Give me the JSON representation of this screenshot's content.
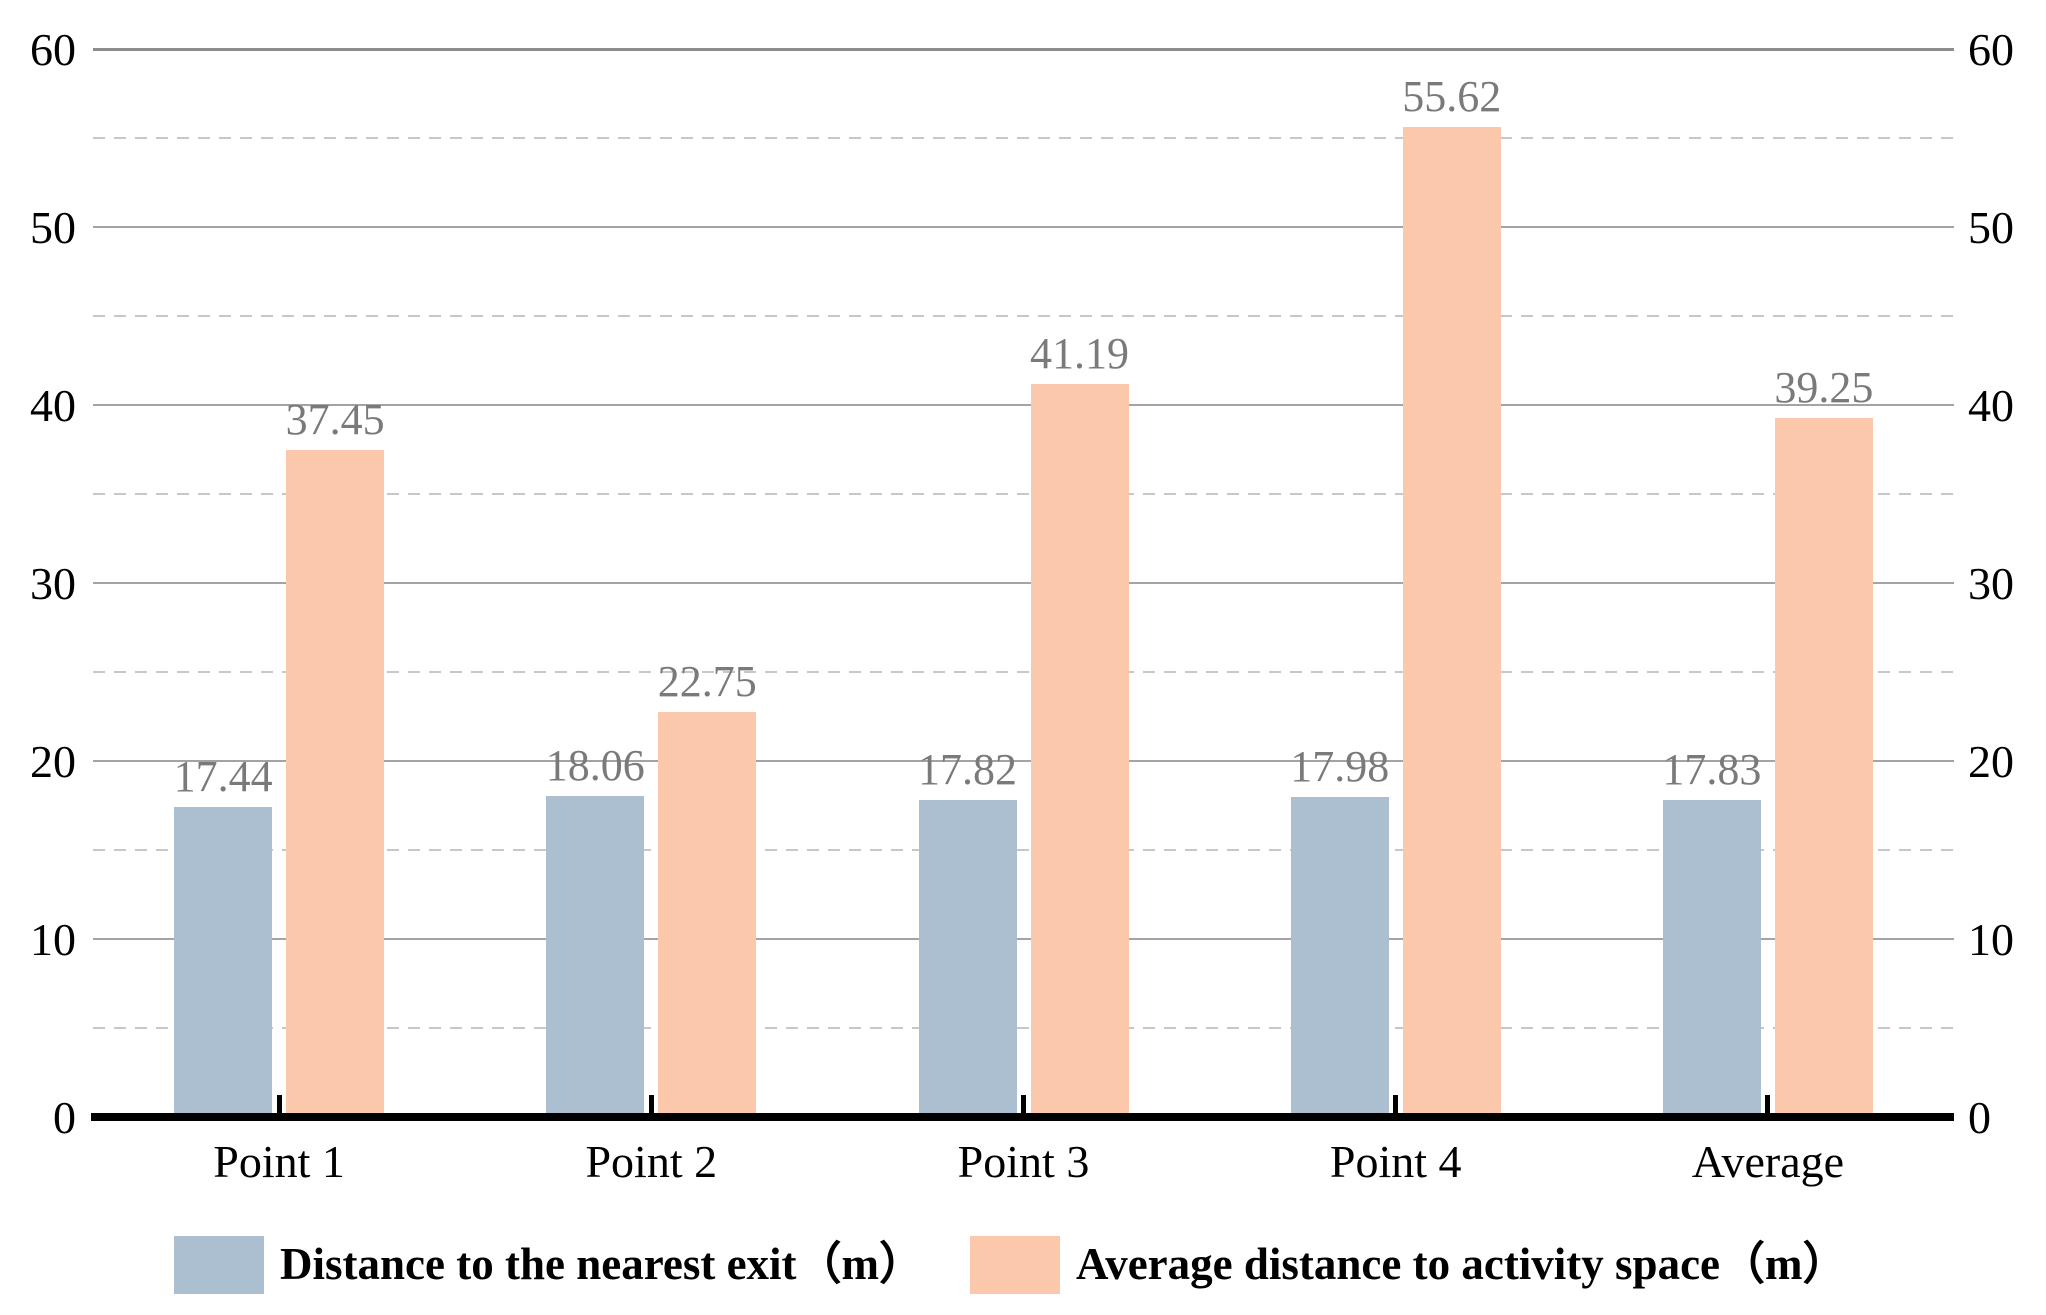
{
  "chart_data": {
    "type": "bar",
    "categories": [
      "Point 1",
      "Point 2",
      "Point 3",
      "Point 4",
      "Average"
    ],
    "series": [
      {
        "name": "Distance to the nearest exit（m）",
        "color": "#abbfd1",
        "values": [
          17.44,
          18.06,
          17.82,
          17.98,
          17.83
        ]
      },
      {
        "name": "Average distance to activity space（m）",
        "color": "#fcc8ab",
        "values": [
          37.45,
          22.75,
          41.19,
          55.62,
          39.25
        ]
      }
    ],
    "title": "",
    "xlabel": "",
    "ylabel": "",
    "ylim": [
      0,
      60
    ],
    "yticks": [
      0,
      10,
      20,
      30,
      40,
      50,
      60
    ],
    "yticks_minor": [
      5,
      15,
      25,
      35,
      45,
      55
    ],
    "ytick_sides": [
      "left",
      "right"
    ],
    "grid": "major-solid-minor-dashed",
    "legend_position": "bottom",
    "value_label_color": "#7a7a7a"
  }
}
